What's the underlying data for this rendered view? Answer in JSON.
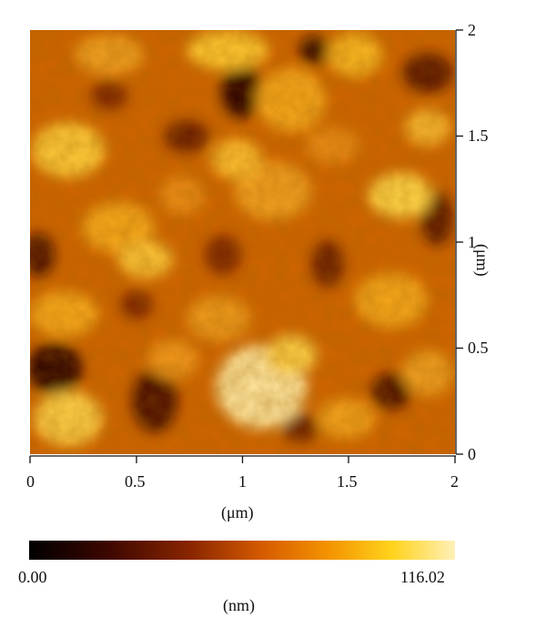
{
  "figure": {
    "x_axis": {
      "label": "(μm)",
      "ticks": [
        "0",
        "0.5",
        "1",
        "1.5",
        "2"
      ]
    },
    "y_axis": {
      "label": "(μm)",
      "ticks": [
        "0",
        "0.5",
        "1",
        "1.5",
        "2"
      ]
    },
    "colorbar": {
      "min_label": "0.00",
      "max_label": "116.02",
      "unit_label": "(nm)",
      "stops": [
        "#000000",
        "#3b0600",
        "#8a2600",
        "#d65c00",
        "#f39200",
        "#ffd21a",
        "#fff0b8"
      ]
    },
    "image_palette": {
      "dark": "#2a0600",
      "mid": "#d46a00",
      "bright": "#ffd94a"
    }
  }
}
